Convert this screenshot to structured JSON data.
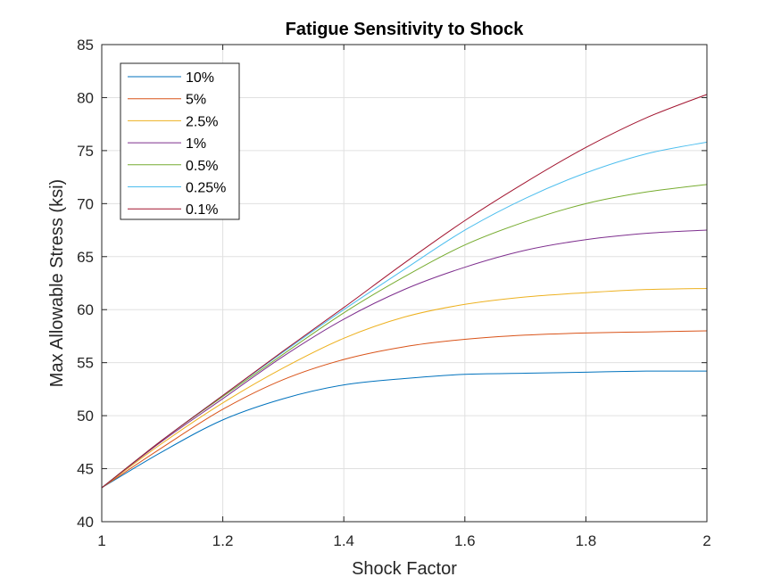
{
  "chart_data": {
    "type": "line",
    "title": "Fatigue Sensitivity to Shock",
    "xlabel": "Shock Factor",
    "ylabel": "Max Allowable Stress (ksi)",
    "xlim": [
      1,
      2
    ],
    "ylim": [
      40,
      85
    ],
    "xticks": [
      1,
      1.2,
      1.4,
      1.6,
      1.8,
      2
    ],
    "xtick_labels": [
      "1",
      "1.2",
      "1.4",
      "1.6",
      "1.8",
      "2"
    ],
    "yticks": [
      40,
      45,
      50,
      55,
      60,
      65,
      70,
      75,
      80,
      85
    ],
    "ytick_labels": [
      "40",
      "45",
      "50",
      "55",
      "60",
      "65",
      "70",
      "75",
      "80",
      "85"
    ],
    "grid": true,
    "legend_position": "top-left",
    "x": [
      1.0,
      1.1,
      1.2,
      1.3,
      1.4,
      1.5,
      1.6,
      1.7,
      1.8,
      1.9,
      2.0
    ],
    "series": [
      {
        "name": "10%",
        "color": "#0072BD",
        "values": [
          43.2,
          46.6,
          49.6,
          51.6,
          52.9,
          53.5,
          53.9,
          54.0,
          54.1,
          54.2,
          54.2
        ]
      },
      {
        "name": "5%",
        "color": "#D95319",
        "values": [
          43.2,
          47.0,
          50.6,
          53.4,
          55.3,
          56.5,
          57.2,
          57.6,
          57.8,
          57.9,
          58.0
        ]
      },
      {
        "name": "2.5%",
        "color": "#EDB120",
        "values": [
          43.2,
          47.4,
          51.2,
          54.5,
          57.3,
          59.3,
          60.5,
          61.2,
          61.6,
          61.9,
          62.0
        ]
      },
      {
        "name": "1%",
        "color": "#7E2F8E",
        "values": [
          43.2,
          47.6,
          51.6,
          55.6,
          59.1,
          61.9,
          64.0,
          65.6,
          66.6,
          67.2,
          67.5
        ]
      },
      {
        "name": "0.5%",
        "color": "#77AC30",
        "values": [
          43.2,
          47.7,
          51.8,
          55.8,
          59.7,
          63.1,
          66.1,
          68.3,
          70.0,
          71.1,
          71.8
        ]
      },
      {
        "name": "0.25%",
        "color": "#4DBEEE",
        "values": [
          43.2,
          47.7,
          51.9,
          56.0,
          60.0,
          63.8,
          67.5,
          70.5,
          72.9,
          74.7,
          75.8
        ]
      },
      {
        "name": "0.1%",
        "color": "#A2142F",
        "values": [
          43.2,
          47.7,
          51.9,
          56.1,
          60.2,
          64.4,
          68.4,
          72.0,
          75.3,
          78.1,
          80.3
        ]
      }
    ]
  }
}
